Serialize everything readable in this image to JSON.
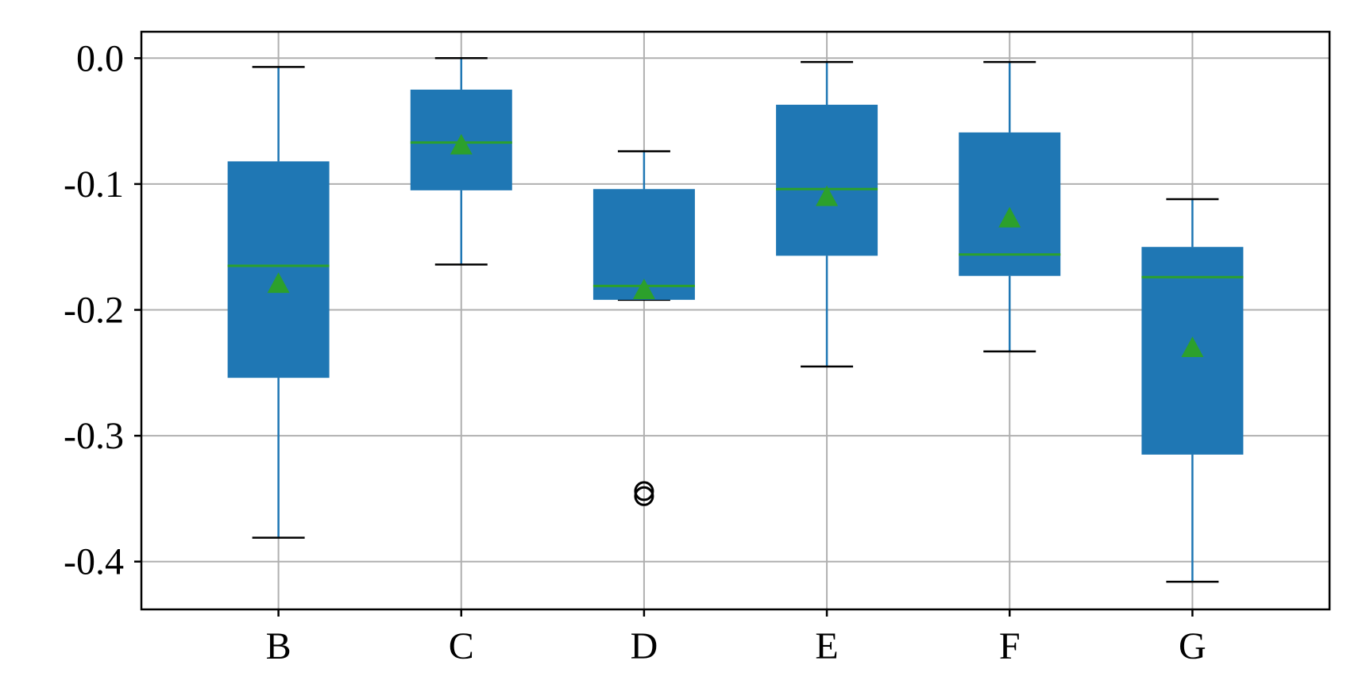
{
  "chart_data": {
    "type": "box",
    "categories": [
      "B",
      "C",
      "D",
      "E",
      "F",
      "G"
    ],
    "boxes": [
      {
        "category": "B",
        "whisker_low": -0.381,
        "q1": -0.254,
        "median": -0.165,
        "q3": -0.082,
        "whisker_high": -0.007,
        "mean": -0.179,
        "outliers": []
      },
      {
        "category": "C",
        "whisker_low": -0.164,
        "q1": -0.105,
        "median": -0.067,
        "q3": -0.025,
        "whisker_high": 0.0,
        "mean": -0.069,
        "outliers": []
      },
      {
        "category": "D",
        "whisker_low": -0.192,
        "q1": -0.192,
        "median": -0.181,
        "q3": -0.104,
        "whisker_high": -0.074,
        "mean": -0.184,
        "outliers": [
          -0.344,
          -0.348
        ]
      },
      {
        "category": "E",
        "whisker_low": -0.245,
        "q1": -0.157,
        "median": -0.104,
        "q3": -0.037,
        "whisker_high": -0.003,
        "mean": -0.11,
        "outliers": []
      },
      {
        "category": "F",
        "whisker_low": -0.233,
        "q1": -0.173,
        "median": -0.156,
        "q3": -0.059,
        "whisker_high": -0.003,
        "mean": -0.127,
        "outliers": []
      },
      {
        "category": "G",
        "whisker_low": -0.416,
        "q1": -0.315,
        "median": -0.174,
        "q3": -0.15,
        "whisker_high": -0.112,
        "mean": -0.23,
        "outliers": []
      }
    ],
    "yticks": [
      0.0,
      -0.1,
      -0.2,
      -0.3,
      -0.4
    ],
    "ytick_labels": [
      "0.0",
      "-0.1",
      "-0.2",
      "-0.3",
      "-0.4"
    ],
    "ylim": [
      -0.438,
      0.021
    ],
    "title": "",
    "xlabel": "",
    "ylabel": "",
    "grid": true,
    "colors": {
      "box": "#1f77b4",
      "median": "#2ca02c",
      "mean_marker": "#2ca02c",
      "whisker": "#1f77b4",
      "cap": "#000000",
      "outlier": "#000000",
      "grid": "#b0b0b0",
      "axes": "#000000"
    }
  }
}
